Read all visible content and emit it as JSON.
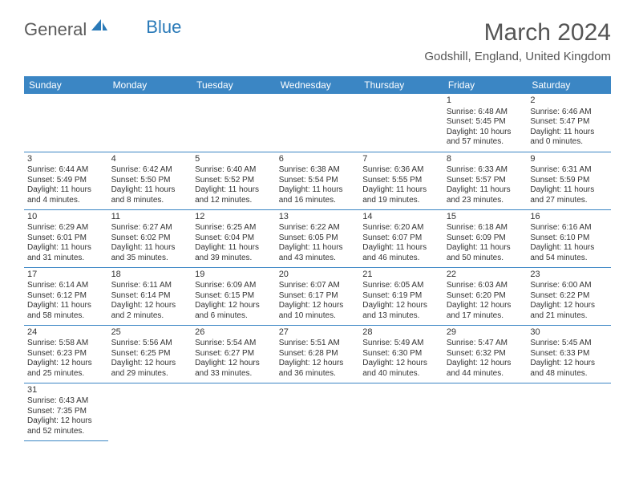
{
  "brand": {
    "general": "General",
    "blue": "Blue"
  },
  "title": "March 2024",
  "subtitle": "Godshill, England, United Kingdom",
  "colors": {
    "header_bg": "#3b86c4",
    "header_fg": "#ffffff",
    "cell_border": "#3b86c4",
    "text": "#333333",
    "logo_gray": "#5a5a5a",
    "logo_blue": "#2a7ab8"
  },
  "weekdays": [
    "Sunday",
    "Monday",
    "Tuesday",
    "Wednesday",
    "Thursday",
    "Friday",
    "Saturday"
  ],
  "days": [
    {
      "n": "1",
      "sr": "Sunrise: 6:48 AM",
      "ss": "Sunset: 5:45 PM",
      "dl": "Daylight: 10 hours and 57 minutes."
    },
    {
      "n": "2",
      "sr": "Sunrise: 6:46 AM",
      "ss": "Sunset: 5:47 PM",
      "dl": "Daylight: 11 hours and 0 minutes."
    },
    {
      "n": "3",
      "sr": "Sunrise: 6:44 AM",
      "ss": "Sunset: 5:49 PM",
      "dl": "Daylight: 11 hours and 4 minutes."
    },
    {
      "n": "4",
      "sr": "Sunrise: 6:42 AM",
      "ss": "Sunset: 5:50 PM",
      "dl": "Daylight: 11 hours and 8 minutes."
    },
    {
      "n": "5",
      "sr": "Sunrise: 6:40 AM",
      "ss": "Sunset: 5:52 PM",
      "dl": "Daylight: 11 hours and 12 minutes."
    },
    {
      "n": "6",
      "sr": "Sunrise: 6:38 AM",
      "ss": "Sunset: 5:54 PM",
      "dl": "Daylight: 11 hours and 16 minutes."
    },
    {
      "n": "7",
      "sr": "Sunrise: 6:36 AM",
      "ss": "Sunset: 5:55 PM",
      "dl": "Daylight: 11 hours and 19 minutes."
    },
    {
      "n": "8",
      "sr": "Sunrise: 6:33 AM",
      "ss": "Sunset: 5:57 PM",
      "dl": "Daylight: 11 hours and 23 minutes."
    },
    {
      "n": "9",
      "sr": "Sunrise: 6:31 AM",
      "ss": "Sunset: 5:59 PM",
      "dl": "Daylight: 11 hours and 27 minutes."
    },
    {
      "n": "10",
      "sr": "Sunrise: 6:29 AM",
      "ss": "Sunset: 6:01 PM",
      "dl": "Daylight: 11 hours and 31 minutes."
    },
    {
      "n": "11",
      "sr": "Sunrise: 6:27 AM",
      "ss": "Sunset: 6:02 PM",
      "dl": "Daylight: 11 hours and 35 minutes."
    },
    {
      "n": "12",
      "sr": "Sunrise: 6:25 AM",
      "ss": "Sunset: 6:04 PM",
      "dl": "Daylight: 11 hours and 39 minutes."
    },
    {
      "n": "13",
      "sr": "Sunrise: 6:22 AM",
      "ss": "Sunset: 6:05 PM",
      "dl": "Daylight: 11 hours and 43 minutes."
    },
    {
      "n": "14",
      "sr": "Sunrise: 6:20 AM",
      "ss": "Sunset: 6:07 PM",
      "dl": "Daylight: 11 hours and 46 minutes."
    },
    {
      "n": "15",
      "sr": "Sunrise: 6:18 AM",
      "ss": "Sunset: 6:09 PM",
      "dl": "Daylight: 11 hours and 50 minutes."
    },
    {
      "n": "16",
      "sr": "Sunrise: 6:16 AM",
      "ss": "Sunset: 6:10 PM",
      "dl": "Daylight: 11 hours and 54 minutes."
    },
    {
      "n": "17",
      "sr": "Sunrise: 6:14 AM",
      "ss": "Sunset: 6:12 PM",
      "dl": "Daylight: 11 hours and 58 minutes."
    },
    {
      "n": "18",
      "sr": "Sunrise: 6:11 AM",
      "ss": "Sunset: 6:14 PM",
      "dl": "Daylight: 12 hours and 2 minutes."
    },
    {
      "n": "19",
      "sr": "Sunrise: 6:09 AM",
      "ss": "Sunset: 6:15 PM",
      "dl": "Daylight: 12 hours and 6 minutes."
    },
    {
      "n": "20",
      "sr": "Sunrise: 6:07 AM",
      "ss": "Sunset: 6:17 PM",
      "dl": "Daylight: 12 hours and 10 minutes."
    },
    {
      "n": "21",
      "sr": "Sunrise: 6:05 AM",
      "ss": "Sunset: 6:19 PM",
      "dl": "Daylight: 12 hours and 13 minutes."
    },
    {
      "n": "22",
      "sr": "Sunrise: 6:03 AM",
      "ss": "Sunset: 6:20 PM",
      "dl": "Daylight: 12 hours and 17 minutes."
    },
    {
      "n": "23",
      "sr": "Sunrise: 6:00 AM",
      "ss": "Sunset: 6:22 PM",
      "dl": "Daylight: 12 hours and 21 minutes."
    },
    {
      "n": "24",
      "sr": "Sunrise: 5:58 AM",
      "ss": "Sunset: 6:23 PM",
      "dl": "Daylight: 12 hours and 25 minutes."
    },
    {
      "n": "25",
      "sr": "Sunrise: 5:56 AM",
      "ss": "Sunset: 6:25 PM",
      "dl": "Daylight: 12 hours and 29 minutes."
    },
    {
      "n": "26",
      "sr": "Sunrise: 5:54 AM",
      "ss": "Sunset: 6:27 PM",
      "dl": "Daylight: 12 hours and 33 minutes."
    },
    {
      "n": "27",
      "sr": "Sunrise: 5:51 AM",
      "ss": "Sunset: 6:28 PM",
      "dl": "Daylight: 12 hours and 36 minutes."
    },
    {
      "n": "28",
      "sr": "Sunrise: 5:49 AM",
      "ss": "Sunset: 6:30 PM",
      "dl": "Daylight: 12 hours and 40 minutes."
    },
    {
      "n": "29",
      "sr": "Sunrise: 5:47 AM",
      "ss": "Sunset: 6:32 PM",
      "dl": "Daylight: 12 hours and 44 minutes."
    },
    {
      "n": "30",
      "sr": "Sunrise: 5:45 AM",
      "ss": "Sunset: 6:33 PM",
      "dl": "Daylight: 12 hours and 48 minutes."
    },
    {
      "n": "31",
      "sr": "Sunrise: 6:43 AM",
      "ss": "Sunset: 7:35 PM",
      "dl": "Daylight: 12 hours and 52 minutes."
    }
  ],
  "leading_blanks": 5,
  "layout": {
    "cols": 7,
    "cell_fontsize": 10,
    "header_fontsize": 12
  }
}
